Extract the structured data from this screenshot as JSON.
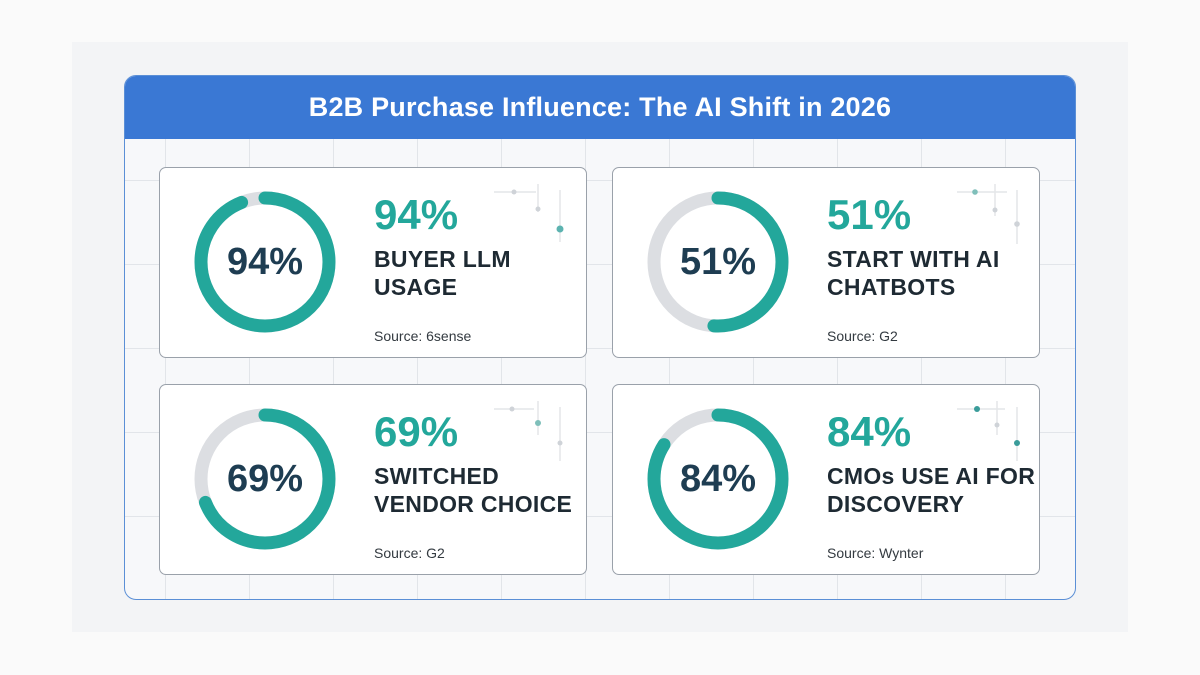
{
  "title": "B2B Purchase Influence: The AI Shift in 2026",
  "colors": {
    "accent": "#23a79b",
    "track": "#dcdee2",
    "header": "#3a78d4",
    "ring_text": "#1e3d52"
  },
  "chart_data": {
    "type": "donut",
    "title": "B2B Purchase Influence: The AI Shift in 2026",
    "unit": "%",
    "ylim": [
      0,
      100
    ],
    "items": [
      {
        "value": 94,
        "value_label": "94%",
        "label": "BUYER LLM USAGE",
        "source": "Source: 6sense"
      },
      {
        "value": 51,
        "value_label": "51%",
        "label": "START WITH AI CHATBOTS",
        "source": "Source: G2"
      },
      {
        "value": 69,
        "value_label": "69%",
        "label": "SWITCHED VENDOR CHOICE",
        "source": "Source: G2"
      },
      {
        "value": 84,
        "value_label": "84%",
        "label": "CMOs USE AI FOR DISCOVERY",
        "source": "Source: Wynter"
      }
    ]
  }
}
